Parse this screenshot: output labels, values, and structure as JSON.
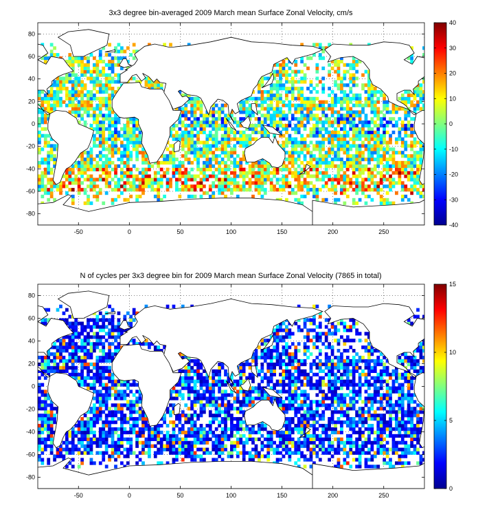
{
  "chart_data": [
    {
      "type": "heatmap",
      "title": "3x3 degree bin-averaged 2009 March mean Surface Zonal Velocity, cm/s",
      "xlim": [
        -90,
        290
      ],
      "ylim": [
        -90,
        90
      ],
      "xticks": [
        -50,
        0,
        50,
        100,
        150,
        200,
        250
      ],
      "yticks": [
        80,
        60,
        40,
        20,
        0,
        -20,
        -40,
        -60,
        -80
      ],
      "grid": true,
      "colormap": "jet",
      "colorbar_range": [
        -40,
        40
      ],
      "colorbar_ticks": [
        40,
        30,
        20,
        10,
        0,
        -10,
        -20,
        -30,
        -40
      ],
      "bin_size_deg": 3
    },
    {
      "type": "heatmap",
      "title": "N of cycles per 3x3 degree bin for 2009 March mean Surface Zonal Velocity (7865 in total)",
      "xlim": [
        -90,
        290
      ],
      "ylim": [
        -90,
        90
      ],
      "xticks": [
        -50,
        0,
        50,
        100,
        150,
        200,
        250
      ],
      "yticks": [
        80,
        60,
        40,
        20,
        0,
        -20,
        -40,
        -60,
        -80
      ],
      "grid": true,
      "colormap": "jet",
      "colorbar_range": [
        0,
        15
      ],
      "colorbar_ticks": [
        15,
        10,
        5,
        0
      ],
      "bin_size_deg": 3,
      "total_cycles": 7865
    }
  ]
}
